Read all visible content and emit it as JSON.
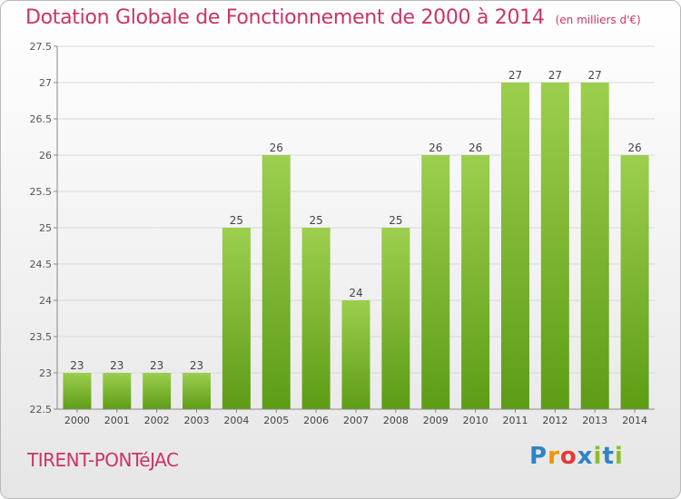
{
  "header": {
    "title": "Dotation Globale de Fonctionnement de 2000 à 2014",
    "unit": "(en milliers d'€)"
  },
  "footer": {
    "commune": "TIRENT-PONTéJAC",
    "logo_letters": [
      "P",
      "r",
      "o",
      "x",
      "i",
      "t",
      "i"
    ]
  },
  "colors": {
    "title": "#cc3366",
    "bar_top": "#9ccf4e",
    "bar_bottom": "#5e9c16",
    "grid": "#d9d9d9"
  },
  "chart_data": {
    "type": "bar",
    "title": "Dotation Globale de Fonctionnement de 2000 à 2014",
    "categories": [
      "2000",
      "2001",
      "2002",
      "2003",
      "2004",
      "2005",
      "2006",
      "2007",
      "2008",
      "2009",
      "2010",
      "2011",
      "2012",
      "2013",
      "2014"
    ],
    "values": [
      23,
      23,
      23,
      23,
      25,
      26,
      25,
      24,
      25,
      26,
      26,
      27,
      27,
      27,
      26
    ],
    "labels": [
      "23",
      "23",
      "23",
      "23",
      "25",
      "26",
      "25",
      "24",
      "25",
      "26",
      "26",
      "27",
      "27",
      "27",
      "26"
    ],
    "ylim": [
      22.5,
      27.5
    ],
    "yticks": [
      22.5,
      23,
      23.5,
      24,
      24.5,
      25,
      25.5,
      26,
      26.5,
      27,
      27.5
    ],
    "ytick_labels": [
      "22.5",
      "23",
      "23.5",
      "24",
      "24.5",
      "25",
      "25.5",
      "26",
      "26.5",
      "27",
      "27.5"
    ],
    "grid": true,
    "legend": "none"
  }
}
